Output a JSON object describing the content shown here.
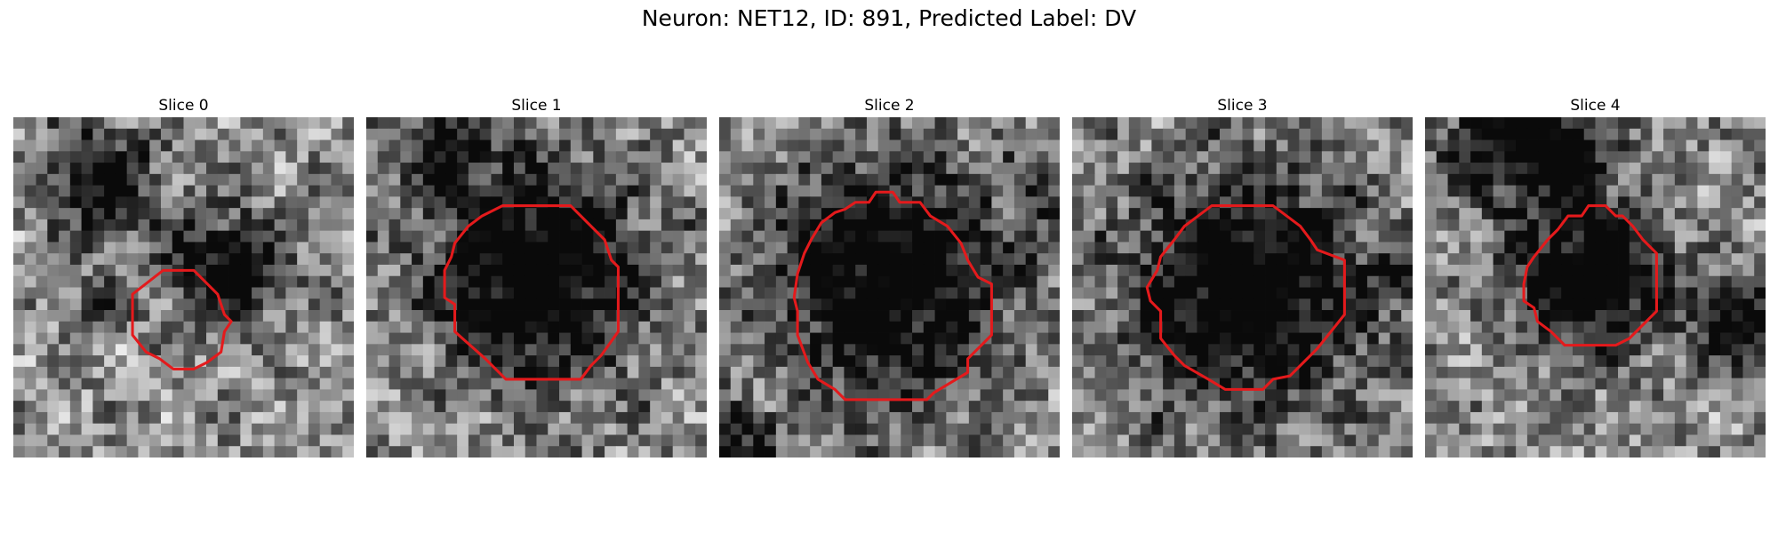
{
  "figure": {
    "title": "Neuron: NET12, ID: 891, Predicted Label: DV"
  },
  "colors": {
    "contour": "#e41a1c",
    "colormap": "grayscale"
  },
  "panels": [
    {
      "title": "Slice 0",
      "seed": 11,
      "dark_blobs": [
        [
          0.25,
          0.18,
          0.12,
          0.55
        ],
        [
          0.62,
          0.45,
          0.12,
          0.6
        ],
        [
          0.25,
          0.55,
          0.05,
          0.5
        ]
      ],
      "contour": [
        [
          0.44,
          0.45
        ],
        [
          0.53,
          0.45
        ],
        [
          0.6,
          0.52
        ],
        [
          0.62,
          0.58
        ],
        [
          0.64,
          0.6
        ],
        [
          0.62,
          0.63
        ],
        [
          0.61,
          0.69
        ],
        [
          0.57,
          0.72
        ],
        [
          0.53,
          0.74
        ],
        [
          0.47,
          0.74
        ],
        [
          0.43,
          0.71
        ],
        [
          0.39,
          0.69
        ],
        [
          0.35,
          0.64
        ],
        [
          0.35,
          0.52
        ]
      ]
    },
    {
      "title": "Slice 1",
      "seed": 23,
      "dark_blobs": [
        [
          0.5,
          0.45,
          0.22,
          0.8
        ],
        [
          0.22,
          0.07,
          0.1,
          0.45
        ]
      ],
      "contour": [
        [
          0.4,
          0.26
        ],
        [
          0.6,
          0.26
        ],
        [
          0.65,
          0.31
        ],
        [
          0.7,
          0.36
        ],
        [
          0.72,
          0.42
        ],
        [
          0.74,
          0.44
        ],
        [
          0.74,
          0.63
        ],
        [
          0.69,
          0.7
        ],
        [
          0.66,
          0.73
        ],
        [
          0.63,
          0.77
        ],
        [
          0.41,
          0.77
        ],
        [
          0.35,
          0.71
        ],
        [
          0.26,
          0.63
        ],
        [
          0.26,
          0.55
        ],
        [
          0.23,
          0.53
        ],
        [
          0.23,
          0.45
        ],
        [
          0.25,
          0.41
        ],
        [
          0.26,
          0.37
        ],
        [
          0.3,
          0.32
        ],
        [
          0.34,
          0.29
        ]
      ]
    },
    {
      "title": "Slice 2",
      "seed": 37,
      "dark_blobs": [
        [
          0.5,
          0.47,
          0.24,
          0.75
        ],
        [
          0.03,
          0.95,
          0.08,
          0.4
        ],
        [
          0.95,
          0.25,
          0.06,
          0.3
        ]
      ],
      "contour": [
        [
          0.46,
          0.22
        ],
        [
          0.51,
          0.22
        ],
        [
          0.53,
          0.25
        ],
        [
          0.59,
          0.25
        ],
        [
          0.62,
          0.29
        ],
        [
          0.67,
          0.32
        ],
        [
          0.71,
          0.37
        ],
        [
          0.73,
          0.42
        ],
        [
          0.76,
          0.47
        ],
        [
          0.8,
          0.49
        ],
        [
          0.8,
          0.64
        ],
        [
          0.76,
          0.68
        ],
        [
          0.73,
          0.71
        ],
        [
          0.73,
          0.75
        ],
        [
          0.68,
          0.78
        ],
        [
          0.63,
          0.81
        ],
        [
          0.61,
          0.83
        ],
        [
          0.37,
          0.83
        ],
        [
          0.34,
          0.8
        ],
        [
          0.29,
          0.77
        ],
        [
          0.26,
          0.72
        ],
        [
          0.23,
          0.64
        ],
        [
          0.23,
          0.57
        ],
        [
          0.22,
          0.53
        ],
        [
          0.23,
          0.46
        ],
        [
          0.25,
          0.4
        ],
        [
          0.27,
          0.36
        ],
        [
          0.3,
          0.31
        ],
        [
          0.34,
          0.28
        ],
        [
          0.37,
          0.27
        ],
        [
          0.4,
          0.25
        ],
        [
          0.44,
          0.25
        ]
      ]
    },
    {
      "title": "Slice 3",
      "seed": 41,
      "dark_blobs": [
        [
          0.52,
          0.5,
          0.24,
          0.8
        ],
        [
          0.97,
          0.48,
          0.06,
          0.4
        ]
      ],
      "contour": [
        [
          0.41,
          0.26
        ],
        [
          0.59,
          0.26
        ],
        [
          0.63,
          0.29
        ],
        [
          0.67,
          0.32
        ],
        [
          0.7,
          0.36
        ],
        [
          0.72,
          0.39
        ],
        [
          0.8,
          0.42
        ],
        [
          0.8,
          0.58
        ],
        [
          0.76,
          0.63
        ],
        [
          0.72,
          0.68
        ],
        [
          0.68,
          0.72
        ],
        [
          0.64,
          0.76
        ],
        [
          0.59,
          0.77
        ],
        [
          0.56,
          0.8
        ],
        [
          0.45,
          0.8
        ],
        [
          0.4,
          0.77
        ],
        [
          0.33,
          0.73
        ],
        [
          0.3,
          0.7
        ],
        [
          0.26,
          0.65
        ],
        [
          0.26,
          0.57
        ],
        [
          0.23,
          0.54
        ],
        [
          0.22,
          0.5
        ],
        [
          0.25,
          0.45
        ],
        [
          0.26,
          0.41
        ],
        [
          0.3,
          0.36
        ],
        [
          0.33,
          0.32
        ],
        [
          0.37,
          0.29
        ]
      ]
    },
    {
      "title": "Slice 4",
      "seed": 53,
      "dark_blobs": [
        [
          0.49,
          0.47,
          0.15,
          0.8
        ],
        [
          0.3,
          0.03,
          0.16,
          0.75
        ],
        [
          0.92,
          0.6,
          0.08,
          0.7
        ],
        [
          0.42,
          0.12,
          0.05,
          0.4
        ]
      ],
      "contour": [
        [
          0.48,
          0.26
        ],
        [
          0.53,
          0.26
        ],
        [
          0.56,
          0.29
        ],
        [
          0.58,
          0.29
        ],
        [
          0.61,
          0.32
        ],
        [
          0.64,
          0.36
        ],
        [
          0.68,
          0.4
        ],
        [
          0.68,
          0.57
        ],
        [
          0.64,
          0.61
        ],
        [
          0.6,
          0.65
        ],
        [
          0.56,
          0.67
        ],
        [
          0.41,
          0.67
        ],
        [
          0.37,
          0.63
        ],
        [
          0.33,
          0.6
        ],
        [
          0.32,
          0.56
        ],
        [
          0.29,
          0.54
        ],
        [
          0.29,
          0.49
        ],
        [
          0.3,
          0.44
        ],
        [
          0.32,
          0.41
        ],
        [
          0.36,
          0.36
        ],
        [
          0.39,
          0.33
        ],
        [
          0.42,
          0.29
        ],
        [
          0.46,
          0.29
        ]
      ]
    }
  ]
}
